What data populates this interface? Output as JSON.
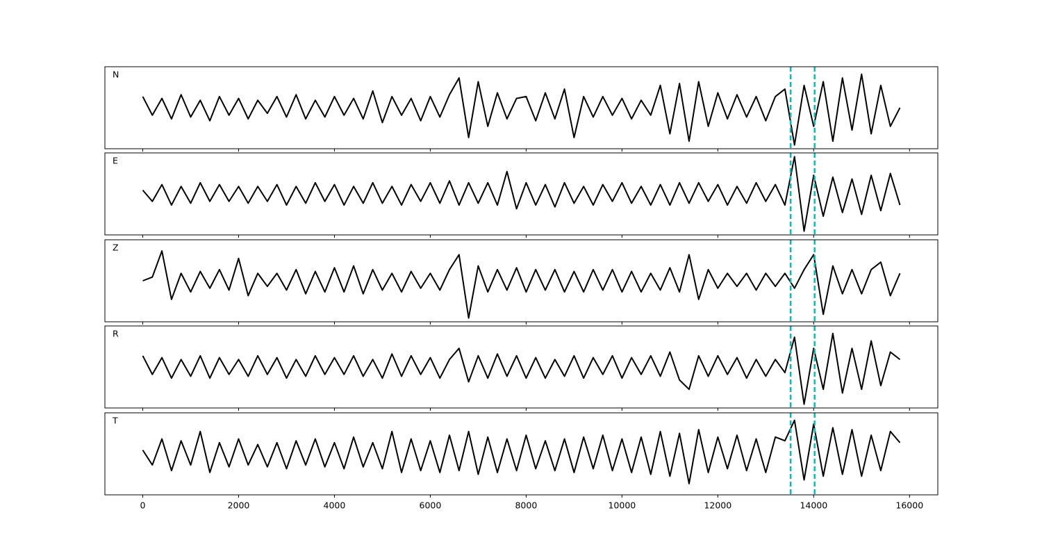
{
  "chart_data": [
    {
      "type": "line",
      "label": "N",
      "xlim": [
        -790,
        16590
      ],
      "ylim": [
        -1.1,
        1.1
      ],
      "vlines": [
        13520,
        14020
      ],
      "vline_color": "#00bfbf",
      "x": [
        0,
        200,
        400,
        600,
        800,
        1000,
        1200,
        1400,
        1600,
        1800,
        2000,
        2200,
        2400,
        2600,
        2800,
        3000,
        3200,
        3400,
        3600,
        3800,
        4000,
        4200,
        4400,
        4600,
        4800,
        5000,
        5200,
        5400,
        5600,
        5800,
        6000,
        6200,
        6400,
        6600,
        6800,
        7000,
        7200,
        7400,
        7600,
        7800,
        8000,
        8200,
        8400,
        8600,
        8800,
        9000,
        9200,
        9400,
        9600,
        9800,
        10000,
        10200,
        10400,
        10600,
        10800,
        11000,
        11200,
        11400,
        11600,
        11800,
        12000,
        12200,
        12400,
        12600,
        12800,
        13000,
        13200,
        13400,
        13600,
        13800,
        14000,
        14200,
        14400,
        14600,
        14800,
        15000,
        15200,
        15400,
        15600,
        15800
      ],
      "series": [
        {
          "color": "#000000",
          "values": [
            0.3,
            -0.2,
            0.25,
            -0.3,
            0.35,
            -0.25,
            0.2,
            -0.35,
            0.3,
            -0.2,
            0.25,
            -0.3,
            0.2,
            -0.15,
            0.3,
            -0.25,
            0.35,
            -0.3,
            0.2,
            -0.25,
            0.3,
            -0.2,
            0.25,
            -0.3,
            0.45,
            -0.4,
            0.3,
            -0.2,
            0.25,
            -0.35,
            0.3,
            -0.25,
            0.35,
            0.8,
            -0.8,
            0.7,
            -0.5,
            0.4,
            -0.3,
            0.25,
            0.3,
            -0.35,
            0.4,
            -0.3,
            0.5,
            -0.8,
            0.3,
            -0.25,
            0.3,
            -0.2,
            0.25,
            -0.3,
            0.2,
            -0.2,
            0.6,
            -0.7,
            0.65,
            -0.9,
            0.7,
            -0.5,
            0.4,
            -0.3,
            0.35,
            -0.25,
            0.3,
            -0.35,
            0.3,
            0.5,
            -1.0,
            0.6,
            -0.5,
            0.7,
            -0.9,
            0.8,
            -0.6,
            0.9,
            -0.7,
            0.6,
            -0.5,
            0.0
          ]
        }
      ]
    },
    {
      "type": "line",
      "label": "E",
      "xlim": [
        -790,
        16590
      ],
      "ylim": [
        -1.1,
        1.1
      ],
      "vlines": [
        13520,
        14020
      ],
      "vline_color": "#00bfbf",
      "x": [
        0,
        200,
        400,
        600,
        800,
        1000,
        1200,
        1400,
        1600,
        1800,
        2000,
        2200,
        2400,
        2600,
        2800,
        3000,
        3200,
        3400,
        3600,
        3800,
        4000,
        4200,
        4400,
        4600,
        4800,
        5000,
        5200,
        5400,
        5600,
        5800,
        6000,
        6200,
        6400,
        6600,
        6800,
        7000,
        7200,
        7400,
        7600,
        7800,
        8000,
        8200,
        8400,
        8600,
        8800,
        9000,
        9200,
        9400,
        9600,
        9800,
        10000,
        10200,
        10400,
        10600,
        10800,
        11000,
        11200,
        11400,
        11600,
        11800,
        12000,
        12200,
        12400,
        12600,
        12800,
        13000,
        13200,
        13400,
        13600,
        13800,
        14000,
        14200,
        14400,
        14600,
        14800,
        15000,
        15200,
        15400,
        15600,
        15800
      ],
      "series": [
        {
          "color": "#000000",
          "values": [
            0.1,
            -0.2,
            0.25,
            -0.3,
            0.2,
            -0.25,
            0.3,
            -0.2,
            0.25,
            -0.2,
            0.2,
            -0.25,
            0.2,
            -0.2,
            0.25,
            -0.3,
            0.2,
            -0.25,
            0.3,
            -0.2,
            0.25,
            -0.3,
            0.2,
            -0.25,
            0.3,
            -0.25,
            0.2,
            -0.3,
            0.25,
            -0.2,
            0.3,
            -0.25,
            0.35,
            -0.3,
            0.3,
            -0.25,
            0.3,
            -0.3,
            0.6,
            -0.4,
            0.3,
            -0.3,
            0.25,
            -0.35,
            0.3,
            -0.25,
            0.2,
            -0.3,
            0.25,
            -0.2,
            0.3,
            -0.25,
            0.2,
            -0.3,
            0.25,
            -0.3,
            0.3,
            -0.25,
            0.3,
            -0.2,
            0.25,
            -0.3,
            0.2,
            -0.25,
            0.3,
            -0.2,
            0.25,
            -0.3,
            1.0,
            -1.0,
            0.5,
            -0.6,
            0.45,
            -0.5,
            0.4,
            -0.55,
            0.5,
            -0.45,
            0.55,
            -0.3
          ]
        }
      ]
    },
    {
      "type": "line",
      "label": "Z",
      "xlim": [
        -790,
        16590
      ],
      "ylim": [
        -1.1,
        1.1
      ],
      "vlines": [
        13520,
        14020
      ],
      "vline_color": "#00bfbf",
      "x": [
        0,
        200,
        400,
        600,
        800,
        1000,
        1200,
        1400,
        1600,
        1800,
        2000,
        2200,
        2400,
        2600,
        2800,
        3000,
        3200,
        3400,
        3600,
        3800,
        4000,
        4200,
        4400,
        4600,
        4800,
        5000,
        5200,
        5400,
        5600,
        5800,
        6000,
        6200,
        6400,
        6600,
        6800,
        7000,
        7200,
        7400,
        7600,
        7800,
        8000,
        8200,
        8400,
        8600,
        8800,
        9000,
        9200,
        9400,
        9600,
        9800,
        10000,
        10200,
        10400,
        10600,
        10800,
        11000,
        11200,
        11400,
        11600,
        11800,
        12000,
        12200,
        12400,
        12600,
        12800,
        13000,
        13200,
        13400,
        13600,
        13800,
        14000,
        14200,
        14400,
        14600,
        14800,
        15000,
        15200,
        15400,
        15600,
        15800
      ],
      "series": [
        {
          "color": "#000000",
          "values": [
            0.0,
            0.1,
            0.8,
            -0.5,
            0.2,
            -0.3,
            0.25,
            -0.2,
            0.3,
            -0.25,
            0.6,
            -0.4,
            0.2,
            -0.15,
            0.2,
            -0.25,
            0.3,
            -0.35,
            0.25,
            -0.3,
            0.35,
            -0.3,
            0.4,
            -0.35,
            0.3,
            -0.25,
            0.2,
            -0.3,
            0.25,
            -0.2,
            0.2,
            -0.25,
            0.3,
            0.7,
            -1.0,
            0.4,
            -0.3,
            0.3,
            -0.25,
            0.35,
            -0.3,
            0.3,
            -0.25,
            0.3,
            -0.3,
            0.25,
            -0.3,
            0.3,
            -0.25,
            0.3,
            -0.3,
            0.25,
            -0.3,
            0.2,
            -0.25,
            0.35,
            -0.3,
            0.7,
            -0.5,
            0.3,
            -0.2,
            0.2,
            -0.15,
            0.2,
            -0.25,
            0.2,
            -0.15,
            0.2,
            -0.2,
            0.3,
            0.7,
            -0.9,
            0.4,
            -0.35,
            0.3,
            -0.35,
            0.3,
            0.5,
            -0.4,
            0.2
          ]
        }
      ]
    },
    {
      "type": "line",
      "label": "R",
      "xlim": [
        -790,
        16590
      ],
      "ylim": [
        -1.1,
        1.1
      ],
      "vlines": [
        13520,
        14020
      ],
      "vline_color": "#00bfbf",
      "x": [
        0,
        200,
        400,
        600,
        800,
        1000,
        1200,
        1400,
        1600,
        1800,
        2000,
        2200,
        2400,
        2600,
        2800,
        3000,
        3200,
        3400,
        3600,
        3800,
        4000,
        4200,
        4400,
        4600,
        4800,
        5000,
        5200,
        5400,
        5600,
        5800,
        6000,
        6200,
        6400,
        6600,
        6800,
        7000,
        7200,
        7400,
        7600,
        7800,
        8000,
        8200,
        8400,
        8600,
        8800,
        9000,
        9200,
        9400,
        9600,
        9800,
        10000,
        10200,
        10400,
        10600,
        10800,
        11000,
        11200,
        11400,
        11600,
        11800,
        12000,
        12200,
        12400,
        12600,
        12800,
        13000,
        13200,
        13400,
        13600,
        13800,
        14000,
        14200,
        14400,
        14600,
        14800,
        15000,
        15200,
        15400,
        15600,
        15800
      ],
      "series": [
        {
          "color": "#000000",
          "values": [
            0.3,
            -0.2,
            0.25,
            -0.3,
            0.2,
            -0.25,
            0.3,
            -0.3,
            0.25,
            -0.2,
            0.2,
            -0.25,
            0.3,
            -0.2,
            0.25,
            -0.3,
            0.2,
            -0.25,
            0.3,
            -0.2,
            0.25,
            -0.2,
            0.3,
            -0.25,
            0.2,
            -0.3,
            0.35,
            -0.25,
            0.3,
            -0.2,
            0.25,
            -0.3,
            0.2,
            0.5,
            -0.4,
            0.3,
            -0.3,
            0.35,
            -0.25,
            0.3,
            -0.3,
            0.25,
            -0.3,
            0.2,
            -0.25,
            0.3,
            -0.3,
            0.25,
            -0.2,
            0.3,
            -0.3,
            0.25,
            -0.2,
            0.3,
            -0.25,
            0.4,
            -0.35,
            -0.6,
            0.3,
            -0.25,
            0.3,
            -0.2,
            0.25,
            -0.3,
            0.2,
            -0.25,
            0.2,
            -0.15,
            0.8,
            -1.0,
            0.5,
            -0.6,
            0.9,
            -0.7,
            0.5,
            -0.6,
            0.7,
            -0.5,
            0.4,
            0.2
          ]
        }
      ]
    },
    {
      "type": "line",
      "label": "T",
      "xlim": [
        -790,
        16590
      ],
      "ylim": [
        -1.1,
        1.1
      ],
      "vlines": [
        13520,
        14020
      ],
      "vline_color": "#00bfbf",
      "xticks": [
        0,
        2000,
        4000,
        6000,
        8000,
        10000,
        12000,
        14000,
        16000
      ],
      "x": [
        0,
        200,
        400,
        600,
        800,
        1000,
        1200,
        1400,
        1600,
        1800,
        2000,
        2200,
        2400,
        2600,
        2800,
        3000,
        3200,
        3400,
        3600,
        3800,
        4000,
        4200,
        4400,
        4600,
        4800,
        5000,
        5200,
        5400,
        5600,
        5800,
        6000,
        6200,
        6400,
        6600,
        6800,
        7000,
        7200,
        7400,
        7600,
        7800,
        8000,
        8200,
        8400,
        8600,
        8800,
        9000,
        9200,
        9400,
        9600,
        9800,
        10000,
        10200,
        10400,
        10600,
        10800,
        11000,
        11200,
        11400,
        11600,
        11800,
        12000,
        12200,
        12400,
        12600,
        12800,
        13000,
        13200,
        13400,
        13600,
        13800,
        14000,
        14200,
        14400,
        14600,
        14800,
        15000,
        15200,
        15400,
        15600,
        15800
      ],
      "series": [
        {
          "color": "#000000",
          "values": [
            0.1,
            -0.3,
            0.4,
            -0.45,
            0.35,
            -0.3,
            0.6,
            -0.5,
            0.3,
            -0.35,
            0.4,
            -0.3,
            0.25,
            -0.35,
            0.3,
            -0.4,
            0.35,
            -0.3,
            0.4,
            -0.35,
            0.3,
            -0.4,
            0.45,
            -0.35,
            0.3,
            -0.4,
            0.6,
            -0.5,
            0.4,
            -0.45,
            0.35,
            -0.5,
            0.5,
            -0.45,
            0.6,
            -0.55,
            0.45,
            -0.5,
            0.4,
            -0.45,
            0.5,
            -0.4,
            0.35,
            -0.45,
            0.4,
            -0.5,
            0.45,
            -0.4,
            0.5,
            -0.45,
            0.4,
            -0.5,
            0.45,
            -0.55,
            0.6,
            -0.6,
            0.55,
            -0.8,
            0.65,
            -0.5,
            0.45,
            -0.4,
            0.5,
            -0.45,
            0.4,
            -0.5,
            0.45,
            0.35,
            0.9,
            -0.7,
            0.8,
            -0.6,
            0.7,
            -0.55,
            0.65,
            -0.6,
            0.5,
            -0.45,
            0.6,
            0.3
          ]
        }
      ]
    }
  ]
}
